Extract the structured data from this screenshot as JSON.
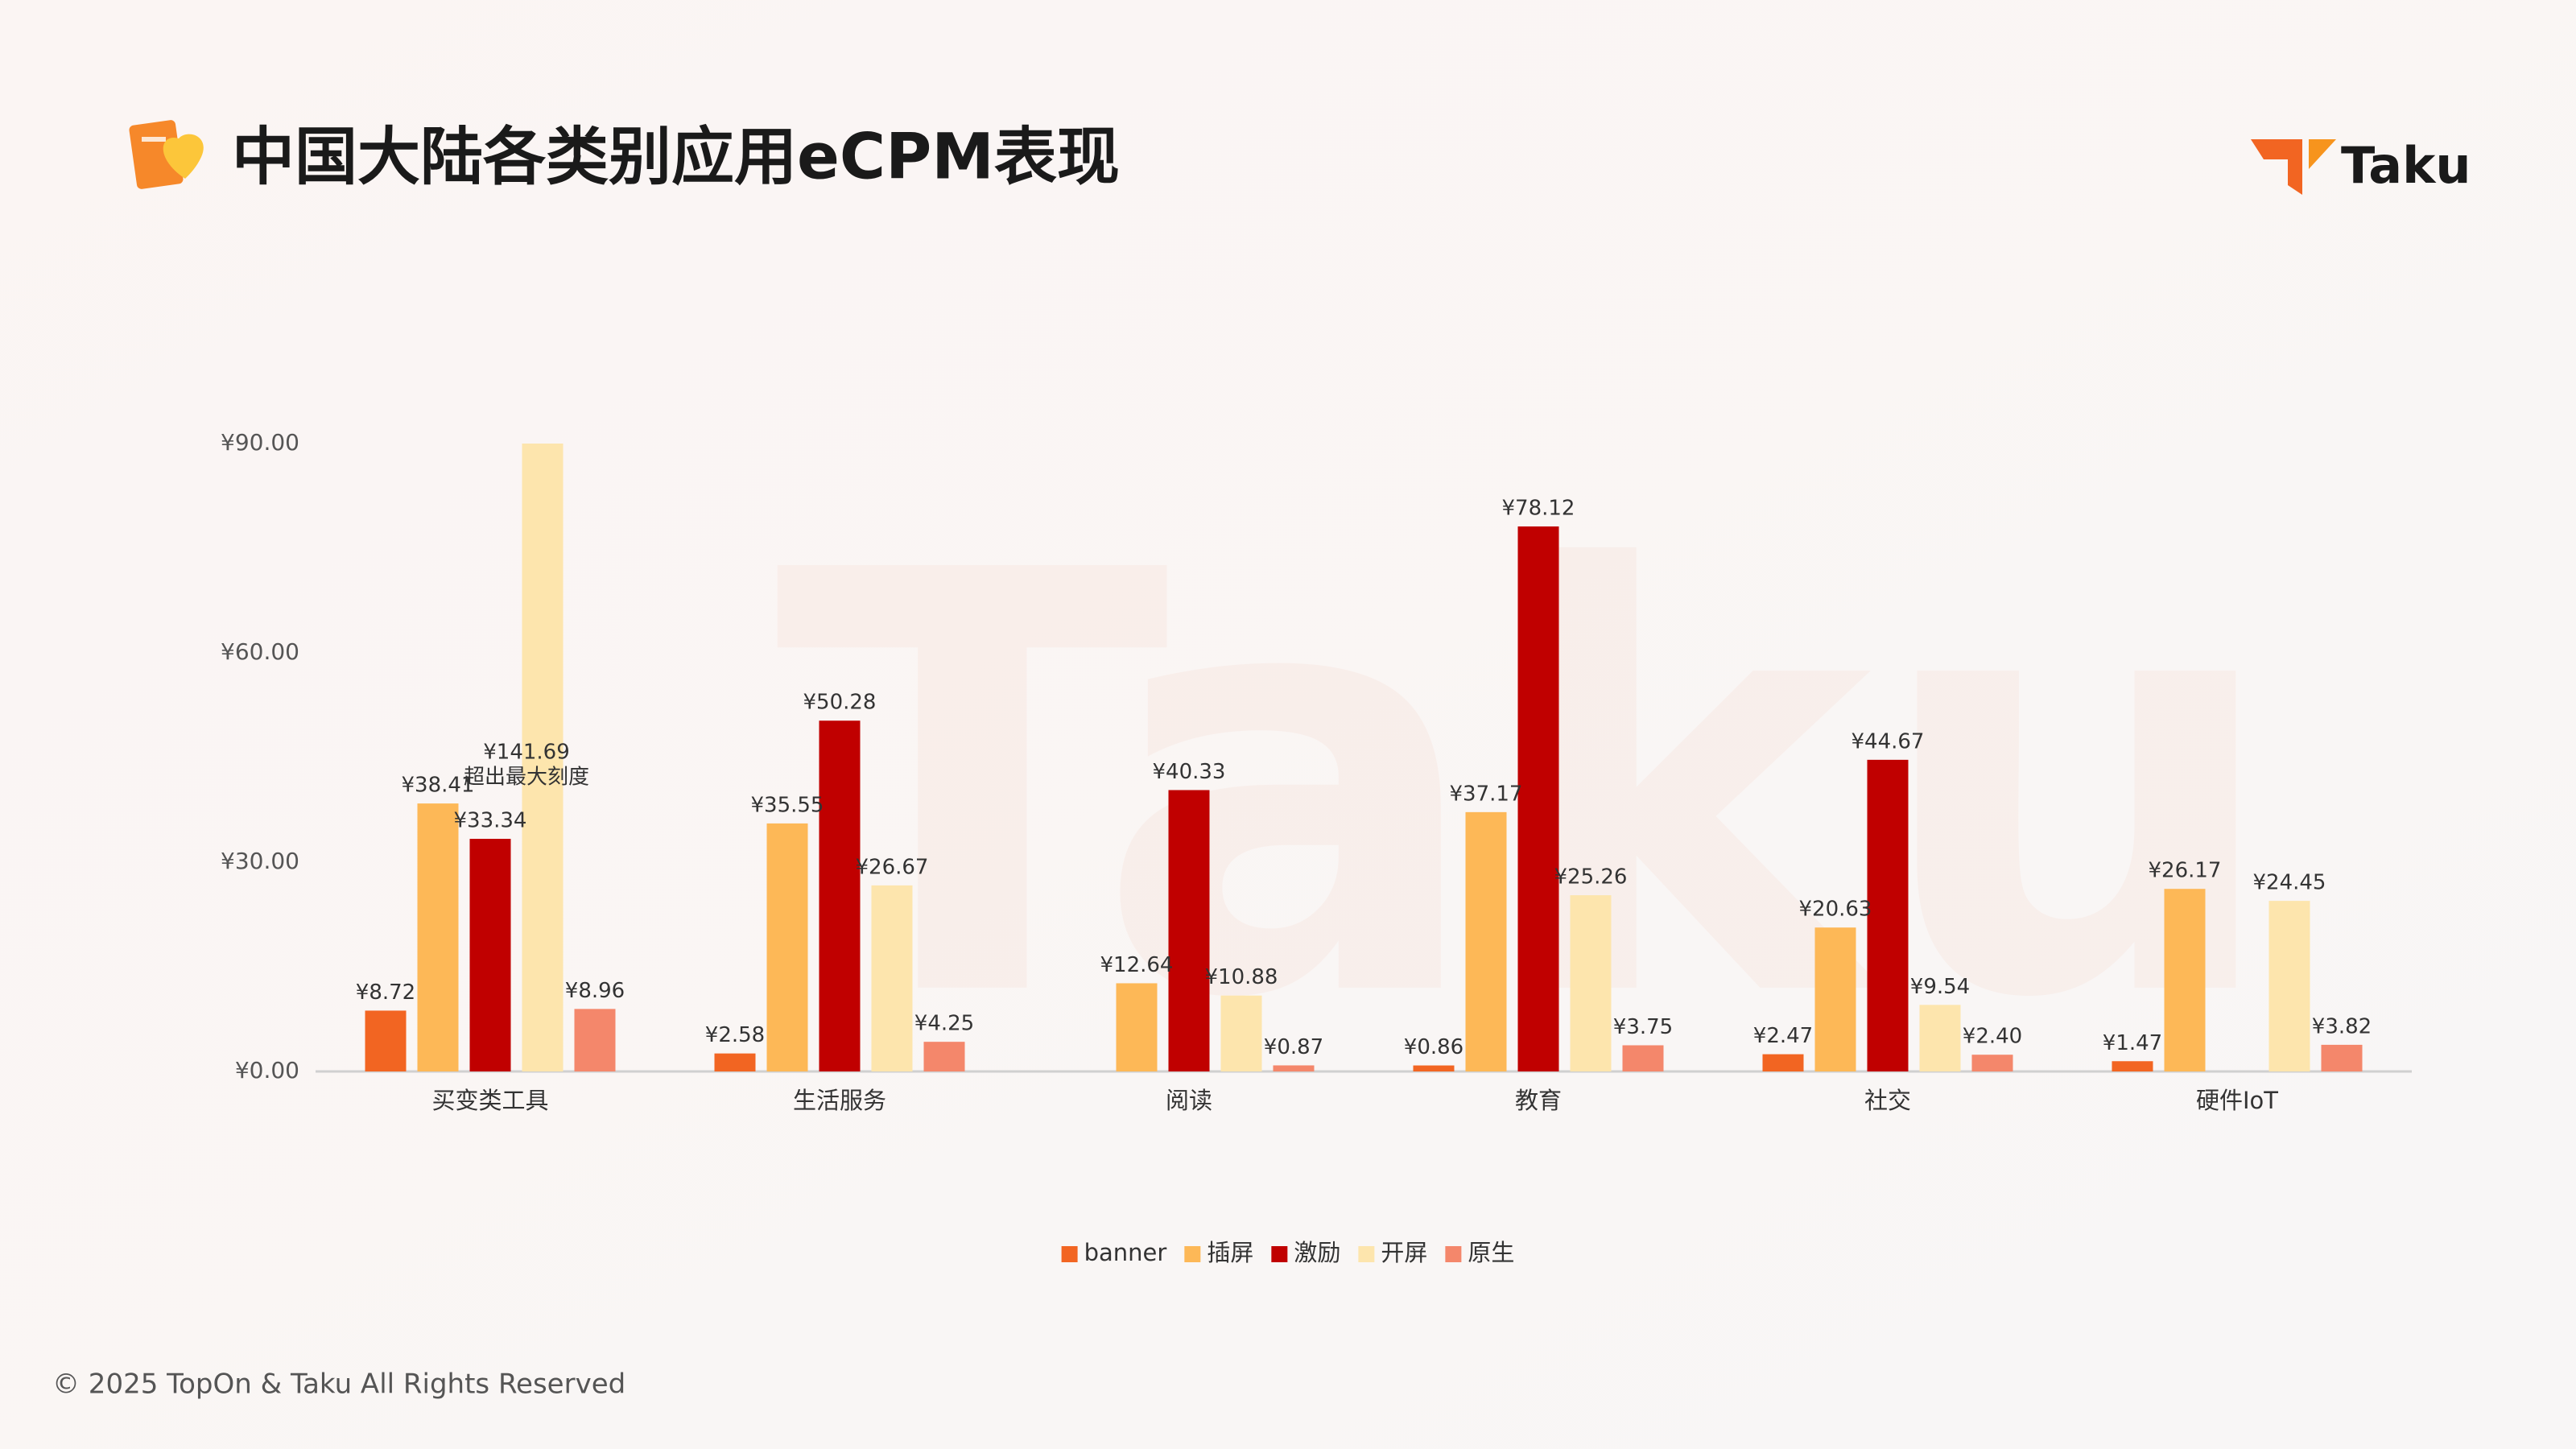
{
  "title": "中国大陆各类别应用eCPM表现",
  "logo": "Taku",
  "footer": "© 2025 TopOn & Taku All Rights Reserved",
  "chart_data": {
    "type": "bar",
    "categories": [
      "买变类工具",
      "生活服务",
      "阅读",
      "教育",
      "社交",
      "硬件IoT"
    ],
    "series": [
      {
        "name": "banner",
        "color": "#f26522",
        "values": [
          8.72,
          2.58,
          null,
          0.86,
          2.47,
          1.47
        ],
        "value_labels": [
          "¥8.72",
          "¥2.58",
          null,
          "¥0.86",
          "¥2.47",
          "¥1.47"
        ]
      },
      {
        "name": "插屏",
        "color": "#fdb857",
        "values": [
          38.41,
          35.55,
          12.64,
          37.17,
          20.63,
          26.17
        ],
        "value_labels": [
          "¥38.41",
          "¥35.55",
          "¥12.64",
          "¥37.17",
          "¥20.63",
          "¥26.17"
        ]
      },
      {
        "name": "激励",
        "color": "#c00000",
        "values": [
          33.34,
          50.28,
          40.33,
          78.12,
          44.67,
          null
        ],
        "value_labels": [
          "¥33.34",
          "¥50.28",
          "¥40.33",
          "¥78.12",
          "¥44.67",
          null
        ]
      },
      {
        "name": "开屏",
        "color": "#fde5ad",
        "values": [
          141.69,
          26.67,
          10.88,
          25.26,
          9.54,
          24.45
        ],
        "value_labels": [
          "¥141.69",
          "¥26.67",
          "¥10.88",
          "¥25.26",
          "¥9.54",
          "¥24.45"
        ]
      },
      {
        "name": "原生",
        "color": "#f4876b",
        "values": [
          8.96,
          4.25,
          0.87,
          3.75,
          2.4,
          3.82
        ],
        "value_labels": [
          "¥8.96",
          "¥4.25",
          "¥0.87",
          "¥3.75",
          "¥2.40",
          "¥3.82"
        ]
      }
    ],
    "annotation": "超出最大刻度",
    "ylim": [
      0,
      90
    ],
    "yticks": [
      {
        "value": 0,
        "label": "¥0.00"
      },
      {
        "value": 30,
        "label": "¥30.00"
      },
      {
        "value": 60,
        "label": "¥60.00"
      },
      {
        "value": 90,
        "label": "¥90.00"
      }
    ],
    "grid": false
  }
}
